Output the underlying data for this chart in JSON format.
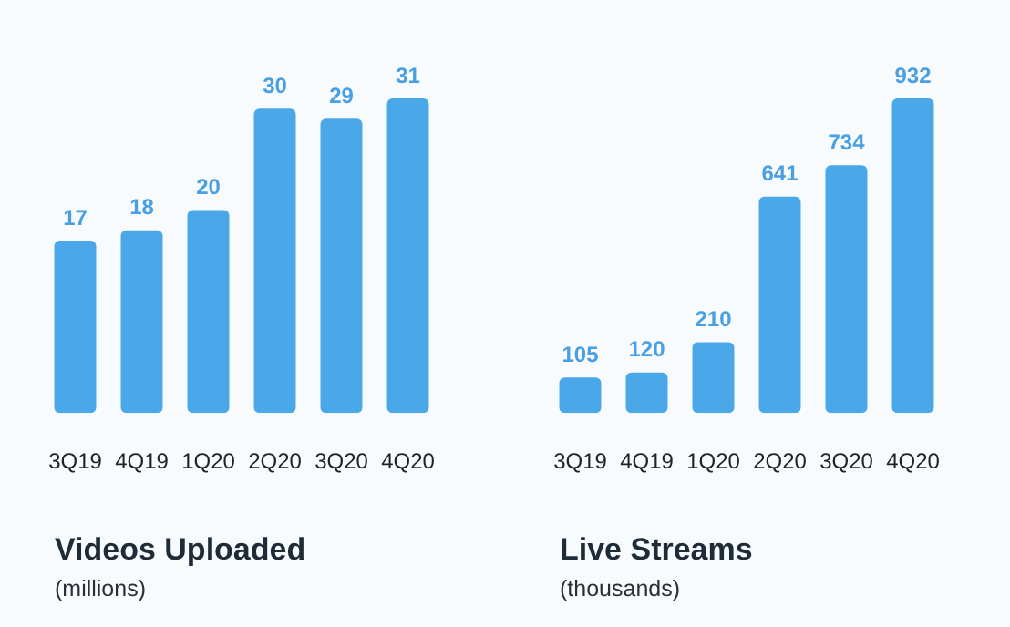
{
  "chart_data": [
    {
      "type": "bar",
      "title": "Videos Uploaded",
      "subtitle": "(millions)",
      "categories": [
        "3Q19",
        "4Q19",
        "1Q20",
        "2Q20",
        "3Q20",
        "4Q20"
      ],
      "values": [
        17,
        18,
        20,
        30,
        29,
        31
      ],
      "color": "#4aa8e8",
      "data_labels": true,
      "tick_labels": "x"
    },
    {
      "type": "bar",
      "title": "Live Streams",
      "subtitle": "(thousands)",
      "categories": [
        "3Q19",
        "4Q19",
        "1Q20",
        "2Q20",
        "3Q20",
        "4Q20"
      ],
      "values": [
        105,
        120,
        210,
        641,
        734,
        932
      ],
      "color": "#4aa8e8",
      "data_labels": true,
      "tick_labels": "x"
    }
  ]
}
